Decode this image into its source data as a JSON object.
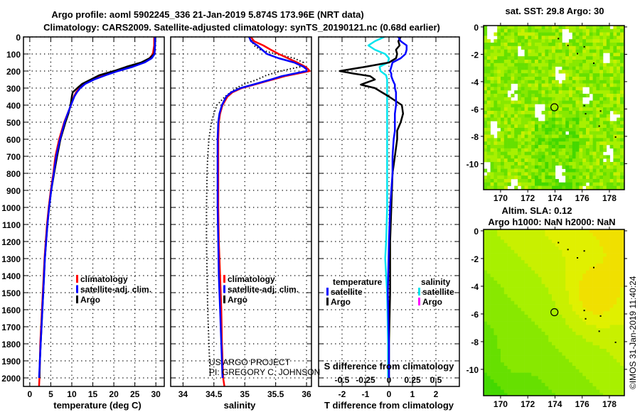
{
  "title": {
    "line1": "Argo profile: aoml 5902245_336 21-Jan-2019 5.874S 173.96E (NRT data)",
    "line2": "Climatology: CARS2009. Satellite-adjusted climatology: synTS_20190121.nc (0.68d earlier)"
  },
  "watermark": {
    "line1": "US ARGO PROJECT",
    "line2": "PI: GREGORY C. JOHNSON"
  },
  "copyright": "©IMOS 31-Jan-2019 11:40:24",
  "chart_data": [
    {
      "type": "line",
      "xlabel": "temperature (deg C)",
      "ylabel": "depth",
      "xlim": [
        -1.5,
        32
      ],
      "ylim": [
        2050,
        0
      ],
      "xticks": [
        0,
        5,
        10,
        15,
        20,
        25,
        30
      ],
      "yticks": [
        0,
        100,
        200,
        300,
        400,
        500,
        600,
        700,
        800,
        900,
        1000,
        1100,
        1200,
        1300,
        1400,
        1500,
        1600,
        1700,
        1800,
        1900,
        2000
      ],
      "grid": true,
      "legend": [
        "climatology",
        "satellite-adj. clim.",
        "Argo"
      ],
      "series": [
        {
          "name": "climatology",
          "color": "#ff0000",
          "depth": [
            0,
            50,
            100,
            125,
            150,
            175,
            200,
            225,
            250,
            275,
            300,
            325,
            350,
            400,
            450,
            500,
            600,
            700,
            800,
            900,
            1000,
            1100,
            1200,
            1300,
            1400,
            1500,
            1600,
            1700,
            1800,
            1900,
            2000,
            2050
          ],
          "values": [
            29.6,
            29.6,
            29.3,
            28.5,
            27,
            24,
            20.5,
            17.5,
            15,
            13,
            11.8,
            11,
            10.5,
            9.8,
            9,
            8.2,
            7.0,
            6.1,
            5.6,
            5.0,
            4.5,
            4.1,
            3.8,
            3.5,
            3.3,
            3.1,
            2.9,
            2.7,
            2.5,
            2.4,
            2.3,
            2.2
          ]
        },
        {
          "name": "Argo",
          "color": "#000000",
          "depth": [
            0,
            50,
            100,
            125,
            150,
            175,
            200,
            225,
            250,
            275,
            300,
            325,
            350,
            400,
            450,
            500,
            600,
            700,
            800,
            900,
            1000,
            1100,
            1200,
            1300,
            1400,
            1500,
            1600,
            1700,
            1800,
            1900,
            2000
          ],
          "values": [
            29.8,
            29.8,
            29.6,
            28.5,
            26.5,
            23,
            20,
            16.5,
            14.5,
            12.5,
            11.3,
            10.2,
            10.0,
            9.7,
            9.2,
            8.5,
            7.3,
            6.5,
            5.8,
            5.1,
            4.6,
            4.2,
            3.9,
            3.6,
            3.4,
            3.2,
            3.0,
            2.8,
            2.6,
            2.4,
            2.3
          ]
        },
        {
          "name": "satellite-adj. clim.",
          "color": "#0000ff",
          "depth": [
            0,
            50,
            100,
            125,
            150,
            175,
            200,
            225,
            250,
            275,
            300,
            325,
            350,
            400,
            450,
            500,
            600,
            700,
            800,
            900,
            1000,
            1100,
            1200,
            1300,
            1400,
            1500,
            1600,
            1700,
            1800,
            1900,
            2000
          ],
          "values": [
            29.8,
            29.8,
            29.7,
            29.0,
            27.3,
            24.5,
            21,
            18,
            15.3,
            13.2,
            12,
            11.2,
            10.6,
            9.8,
            9.0,
            8.3,
            7.2,
            6.3,
            5.7,
            5.1,
            4.6,
            4.2,
            3.9,
            3.6,
            3.4,
            3.2,
            3.0,
            2.8,
            2.6,
            2.4,
            2.2
          ]
        }
      ]
    },
    {
      "type": "line",
      "xlabel": "salinity",
      "ylabel": "depth",
      "xlim": [
        33.8,
        36.08
      ],
      "ylim": [
        2050,
        0
      ],
      "xticks": [
        34,
        34.5,
        35,
        35.5,
        36
      ],
      "grid": true,
      "legend": [
        "climatology",
        "satellite-adj. clim.",
        "Argo"
      ],
      "series": [
        {
          "name": "Argo",
          "color": "#000000",
          "style": "dotted",
          "depth": [
            0,
            25,
            50,
            75,
            100,
            125,
            150,
            175,
            200,
            225,
            250,
            275,
            300,
            350,
            400,
            450,
            500,
            600,
            700,
            800,
            1000,
            1200,
            1400,
            1600,
            1800,
            2000
          ],
          "values": [
            35.1,
            35.12,
            35.15,
            35.25,
            35.5,
            35.8,
            35.95,
            35.9,
            35.58,
            35.35,
            35.2,
            35.0,
            34.86,
            34.68,
            34.55,
            34.5,
            34.46,
            34.42,
            34.4,
            34.39,
            34.38,
            34.38,
            34.39,
            34.4,
            34.42,
            34.44
          ]
        },
        {
          "name": "climatology",
          "color": "#ff0000",
          "depth": [
            0,
            25,
            50,
            75,
            100,
            125,
            150,
            175,
            190,
            200,
            215,
            230,
            250,
            275,
            300,
            325,
            350,
            400,
            450,
            500,
            600,
            800,
            1000,
            1200,
            1400,
            1600,
            1800,
            2000,
            2050
          ],
          "values": [
            35.1,
            35.15,
            35.3,
            35.42,
            35.55,
            35.7,
            35.85,
            35.98,
            36.03,
            36.05,
            35.85,
            35.65,
            35.45,
            35.2,
            34.95,
            34.8,
            34.72,
            34.64,
            34.6,
            34.58,
            34.57,
            34.57,
            34.57,
            34.58,
            34.6,
            34.62,
            34.63,
            34.65,
            34.67
          ]
        },
        {
          "name": "satellite-adj. clim.",
          "color": "#0000ff",
          "depth": [
            0,
            25,
            50,
            75,
            100,
            125,
            150,
            175,
            190,
            200,
            215,
            230,
            250,
            275,
            300,
            325,
            350,
            400,
            450,
            500,
            600,
            800,
            1000,
            1200,
            1400,
            1600,
            1800,
            2000
          ],
          "values": [
            35.07,
            35.1,
            35.2,
            35.28,
            35.36,
            35.55,
            35.8,
            35.95,
            36.0,
            36.0,
            35.8,
            35.6,
            35.42,
            35.18,
            34.93,
            34.78,
            34.7,
            34.63,
            34.59,
            34.57,
            34.56,
            34.56,
            34.56,
            34.57,
            34.58,
            34.6,
            34.62,
            34.64
          ]
        }
      ]
    },
    {
      "type": "line",
      "xlabel": "T difference from climatology",
      "xlabel2": "S difference from climatology",
      "xlim": [
        -3,
        3
      ],
      "xlim2": [
        -0.75,
        0.75
      ],
      "ylim": [
        2050,
        0
      ],
      "xticks": [
        -2,
        -1,
        0,
        1,
        2
      ],
      "xticks2": [
        -0.5,
        -0.25,
        0,
        0.25,
        0.5
      ],
      "grid": true,
      "legend": {
        "temperature_title": "temperature",
        "salinity_title": "salinity",
        "items": [
          "satellite",
          "Argo",
          "satellite",
          "Argo"
        ]
      },
      "series": [
        {
          "name": "salinity satellite",
          "color": "#00e5ee",
          "axis": "S",
          "depth": [
            0,
            25,
            50,
            75,
            100,
            125,
            150,
            175,
            200,
            225,
            250,
            300,
            400,
            600,
            800,
            1000,
            1200,
            1300,
            1500,
            1800,
            2000
          ],
          "values": [
            -0.05,
            -0.15,
            -0.22,
            -0.15,
            -0.04,
            0.0,
            -0.01,
            -0.1,
            -0.09,
            -0.03,
            -0.02,
            -0.02,
            -0.02,
            -0.02,
            -0.02,
            -0.02,
            -0.03,
            -0.04,
            -0.02,
            -0.01,
            -0.01
          ]
        },
        {
          "name": "salinity Argo",
          "color": "#ff00ff",
          "axis": "S",
          "depth": [],
          "values": []
        },
        {
          "name": "temperature Argo",
          "color": "#000000",
          "axis": "T",
          "depth": [
            0,
            25,
            50,
            75,
            100,
            125,
            150,
            175,
            200,
            215,
            230,
            250,
            265,
            280,
            300,
            325,
            350,
            400,
            450,
            500,
            550,
            600,
            700,
            800,
            1000,
            1200,
            1500,
            1800,
            2000
          ],
          "values": [
            0.5,
            0.4,
            0.45,
            0.3,
            0.35,
            0.3,
            0.0,
            -1.0,
            -2.1,
            -1.5,
            -0.8,
            -0.6,
            -0.9,
            -1.2,
            -0.6,
            -0.3,
            0.0,
            0.55,
            0.6,
            0.5,
            0.35,
            0.35,
            0.25,
            0.15,
            0.1,
            0.05,
            0.05,
            0.0,
            0.0
          ]
        },
        {
          "name": "temperature satellite",
          "color": "#0000ff",
          "axis": "T",
          "depth": [
            0,
            25,
            50,
            75,
            100,
            125,
            150,
            175,
            200,
            215,
            230,
            250,
            265,
            280,
            300,
            325,
            350,
            400,
            450,
            500,
            550,
            600,
            700,
            800,
            1000,
            1200,
            1500,
            1800,
            2000
          ],
          "values": [
            0.4,
            0.5,
            0.75,
            0.75,
            0.7,
            0.5,
            0.15,
            0.1,
            0.05,
            0.1,
            0.1,
            0.15,
            0.2,
            0.25,
            0.25,
            0.3,
            0.3,
            0.3,
            0.25,
            0.25,
            0.25,
            0.2,
            0.15,
            0.15,
            0.05,
            0.0,
            -0.05,
            0.0,
            0.0
          ]
        }
      ]
    },
    {
      "type": "heatmap",
      "title": "sat. SST: 29.8 Argo: 30",
      "xlim": [
        168.75,
        179.1
      ],
      "ylim": [
        -11.9,
        0.1
      ],
      "xticks": [
        170,
        172,
        174,
        176,
        178
      ],
      "yticks": [
        0,
        -2,
        -4,
        -6,
        -8,
        -10
      ],
      "marker": {
        "lon": 173.96,
        "lat": -5.874
      }
    },
    {
      "type": "heatmap",
      "title": "Altim. SLA: 0.12",
      "subtitle": "Argo h1000: NaN h2000: NaN",
      "xlim": [
        168.75,
        179.1
      ],
      "ylim": [
        -11.9,
        0.1
      ],
      "xticks": [
        170,
        172,
        174,
        176,
        178
      ],
      "yticks": [
        0,
        -2,
        -4,
        -6,
        -8,
        -10
      ],
      "marker": {
        "lon": 173.96,
        "lat": -5.874
      }
    }
  ]
}
